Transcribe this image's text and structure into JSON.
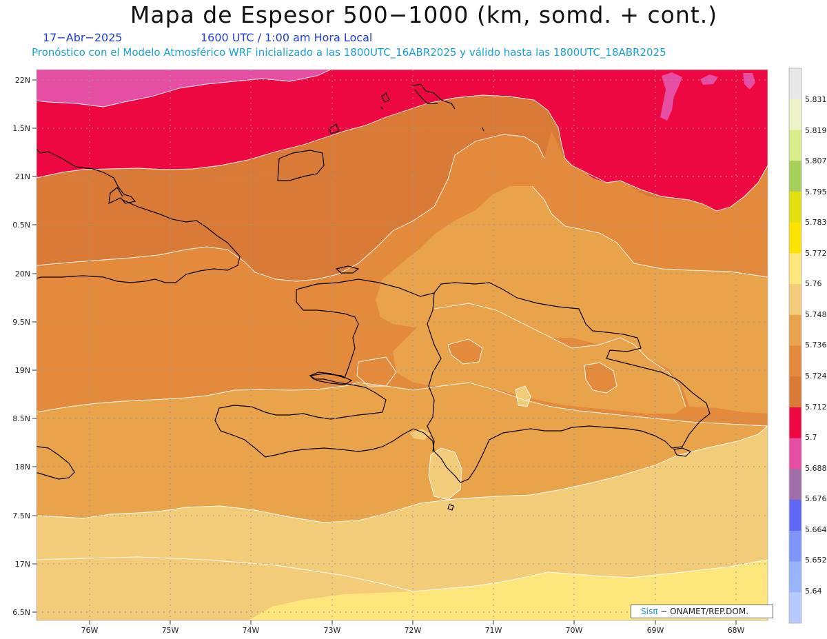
{
  "header": {
    "title": "Mapa de Espesor 500−1000 (km, somd. + cont.)",
    "date": "17−Abr−2025",
    "time": "1600 UTC / 1:00 am Hora Local",
    "subtitle": "Pronóstico con el Modelo Atmosférico WRF inicializado a las 1800UTC_16ABR2025 y válido hasta las  1800UTC_18ABR2025"
  },
  "map": {
    "lat_labels": [
      "22N",
      "1.5N",
      "21N",
      "0.5N",
      "20N",
      "9.5N",
      "19N",
      "8.5N",
      "18N",
      "7.5N",
      "17N",
      "6.5N"
    ],
    "lon_labels": [
      "76W",
      "75W",
      "74W",
      "73W",
      "72W",
      "71W",
      "70W",
      "69W",
      "68W"
    ],
    "colors": {
      "band_5688": "#e54ea3",
      "band_5700": "#ee0841",
      "band_5712": "#d97a37",
      "band_5724": "#e48a3c",
      "band_5736": "#e9a34a",
      "band_5748": "#f2cc78",
      "band_5760": "#fde67b",
      "coast": "#000000",
      "contour": "#ffffff"
    }
  },
  "colorbar": {
    "labels": [
      "5.831",
      "5.819",
      "5.807",
      "5.795",
      "5.783",
      "5.772",
      "5.76",
      "5.748",
      "5.736",
      "5.724",
      "5.712",
      "5.7",
      "5.688",
      "5.676",
      "5.664",
      "5.652",
      "5.64"
    ],
    "colors": [
      "#e8e8e8",
      "#eef2c8",
      "#d9ee8a",
      "#a6cf5c",
      "#e3e010",
      "#fbe400",
      "#fde67b",
      "#f2cc78",
      "#e9a34a",
      "#e48a3c",
      "#d97a37",
      "#ee0841",
      "#e54ea3",
      "#9f6ea8",
      "#5f68f5",
      "#7f95f9",
      "#99b4fb",
      "#b7cafc"
    ]
  },
  "credit": {
    "sis": "Sisπ",
    "org": "− ONAMET/REP.DOM."
  }
}
